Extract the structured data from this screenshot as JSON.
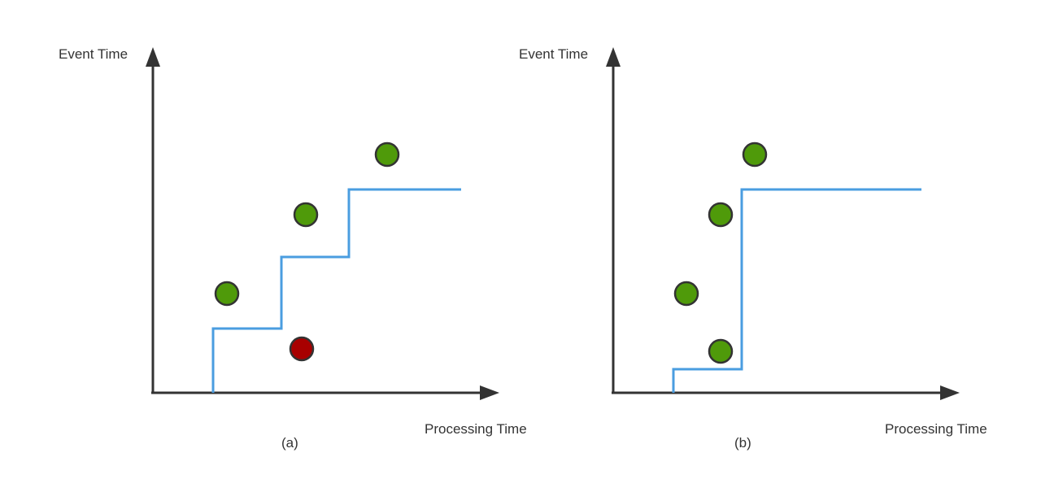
{
  "colors": {
    "axis": "#333333",
    "watermark_line": "#4a9de0",
    "on_time_event": "#4f9a0a",
    "late_event": "#a80000"
  },
  "panels": [
    {
      "id": "a",
      "caption": "(a)",
      "y_axis_label": "Event Time",
      "x_axis_label": "Processing Time",
      "events": [
        {
          "status": "on-time"
        },
        {
          "status": "on-time"
        },
        {
          "status": "on-time"
        },
        {
          "status": "late"
        }
      ]
    },
    {
      "id": "b",
      "caption": "(b)",
      "y_axis_label": "Event Time",
      "x_axis_label": "Processing Time",
      "events": [
        {
          "status": "on-time"
        },
        {
          "status": "on-time"
        },
        {
          "status": "on-time"
        },
        {
          "status": "on-time"
        }
      ]
    }
  ]
}
